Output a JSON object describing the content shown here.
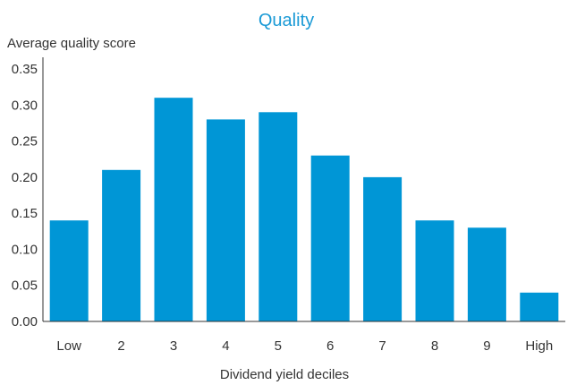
{
  "chart_data": {
    "type": "bar",
    "title": "Quality",
    "ylabel": "Average quality score",
    "xlabel": "Dividend yield deciles",
    "categories": [
      "Low",
      "2",
      "3",
      "4",
      "5",
      "6",
      "7",
      "8",
      "9",
      "High"
    ],
    "values": [
      0.14,
      0.21,
      0.31,
      0.28,
      0.29,
      0.23,
      0.2,
      0.14,
      0.13,
      0.04
    ],
    "ylim": [
      0,
      0.35
    ],
    "yticks": [
      "0.00",
      "0.05",
      "0.10",
      "0.15",
      "0.20",
      "0.25",
      "0.30",
      "0.35"
    ],
    "grid": false,
    "colors": {
      "bar": "#0096d6",
      "title": "#1a9ad6",
      "axis": "#333333"
    }
  }
}
